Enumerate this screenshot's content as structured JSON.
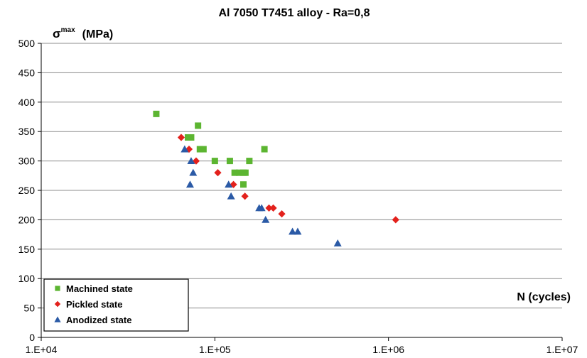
{
  "chart_data": {
    "type": "scatter",
    "title": "Al 7050 T7451 alloy - Ra=0,8",
    "ylabel_symbol": "σ",
    "ylabel_superscript": "max",
    "ylabel_unit": "(MPa)",
    "xlabel": "N (cycles)",
    "x_scale": "log",
    "xlim": [
      10000,
      10000000
    ],
    "ylim": [
      0,
      500
    ],
    "x_ticks": [
      10000,
      100000,
      1000000,
      10000000
    ],
    "x_tick_labels": [
      "1.E+04",
      "1.E+05",
      "1.E+06",
      "1.E+07"
    ],
    "y_ticks": [
      0,
      50,
      100,
      150,
      200,
      250,
      300,
      350,
      400,
      450,
      500
    ],
    "y_tick_labels": [
      "0",
      "50",
      "100",
      "150",
      "200",
      "250",
      "300",
      "350",
      "400",
      "450",
      "500"
    ],
    "grid": "horizontal",
    "legend_position": "bottom-left",
    "series": [
      {
        "name": "Machined state",
        "marker": "square",
        "color": "#5cb531",
        "points": [
          [
            46000,
            380
          ],
          [
            70000,
            340
          ],
          [
            73000,
            340
          ],
          [
            80000,
            360
          ],
          [
            82000,
            320
          ],
          [
            86000,
            320
          ],
          [
            100000,
            300
          ],
          [
            122000,
            300
          ],
          [
            130000,
            280
          ],
          [
            138000,
            280
          ],
          [
            146000,
            280
          ],
          [
            150000,
            280
          ],
          [
            146000,
            260
          ],
          [
            158000,
            300
          ],
          [
            193000,
            320
          ]
        ]
      },
      {
        "name": "Pickled state",
        "marker": "diamond",
        "color": "#e3211c",
        "points": [
          [
            64000,
            340
          ],
          [
            71000,
            320
          ],
          [
            78000,
            300
          ],
          [
            104000,
            280
          ],
          [
            128000,
            260
          ],
          [
            149000,
            240
          ],
          [
            205000,
            220
          ],
          [
            217000,
            220
          ],
          [
            243000,
            210
          ],
          [
            1100000,
            200
          ]
        ]
      },
      {
        "name": "Anodized state",
        "marker": "triangle",
        "color": "#2b5aa6",
        "points": [
          [
            67000,
            320
          ],
          [
            73000,
            300
          ],
          [
            72000,
            260
          ],
          [
            75000,
            280
          ],
          [
            120000,
            260
          ],
          [
            124000,
            240
          ],
          [
            180000,
            220
          ],
          [
            186000,
            220
          ],
          [
            196000,
            200
          ],
          [
            280000,
            180
          ],
          [
            300000,
            180
          ],
          [
            510000,
            160
          ]
        ]
      }
    ]
  }
}
